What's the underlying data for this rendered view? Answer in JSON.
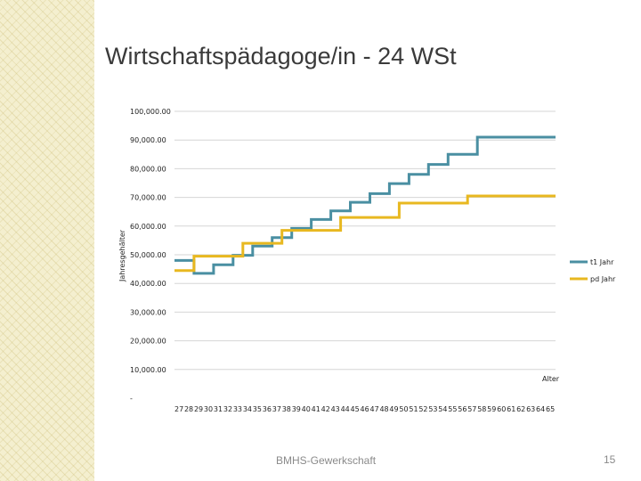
{
  "slide": {
    "title": "Wirtschaftspädagoge/in - 24 WSt",
    "footer": "BMHS-Gewerkschaft",
    "page_number": "15"
  },
  "chart_data": {
    "type": "line",
    "title": "",
    "xlabel": "Alter",
    "ylabel": "Jahresgehälter",
    "ylim": [
      0,
      100000
    ],
    "yticks": [
      0,
      10000,
      20000,
      30000,
      40000,
      50000,
      60000,
      70000,
      80000,
      90000,
      100000
    ],
    "ytick_labels": [
      "-",
      "10,000.00",
      "20,000.00",
      "30,000.00",
      "40,000.00",
      "50,000.00",
      "60,000.00",
      "70,000.00",
      "80,000.00",
      "90,000.00",
      "100,000.00"
    ],
    "x": [
      27,
      28,
      29,
      30,
      31,
      32,
      33,
      34,
      35,
      36,
      37,
      38,
      39,
      40,
      41,
      42,
      43,
      44,
      45,
      46,
      47,
      48,
      49,
      50,
      51,
      52,
      53,
      54,
      55,
      56,
      57,
      58,
      59,
      60,
      61,
      62,
      63,
      64,
      65
    ],
    "grid": true,
    "legend_position": "right",
    "series": [
      {
        "name": "t1 Jahr",
        "color": "#4a8fa2",
        "values": [
          48000,
          48000,
          43500,
          43500,
          46500,
          46500,
          49800,
          49800,
          53000,
          53000,
          56000,
          56000,
          59200,
          59200,
          62300,
          62300,
          65300,
          65300,
          68300,
          68300,
          71300,
          71300,
          74800,
          74800,
          78000,
          78000,
          81500,
          81500,
          85000,
          85000,
          85000,
          91000,
          91000,
          91000,
          91000,
          91000,
          91000,
          91000,
          91000
        ]
      },
      {
        "name": "pd Jahr",
        "color": "#e8b820",
        "values": [
          44500,
          44500,
          49500,
          49500,
          49500,
          49500,
          49500,
          54000,
          54000,
          54000,
          54000,
          58500,
          58500,
          58500,
          58500,
          58500,
          58500,
          63000,
          63000,
          63000,
          63000,
          63000,
          63000,
          68000,
          68000,
          68000,
          68000,
          68000,
          68000,
          68000,
          70500,
          70500,
          70500,
          70500,
          70500,
          70500,
          70500,
          70500,
          70500
        ]
      }
    ]
  }
}
